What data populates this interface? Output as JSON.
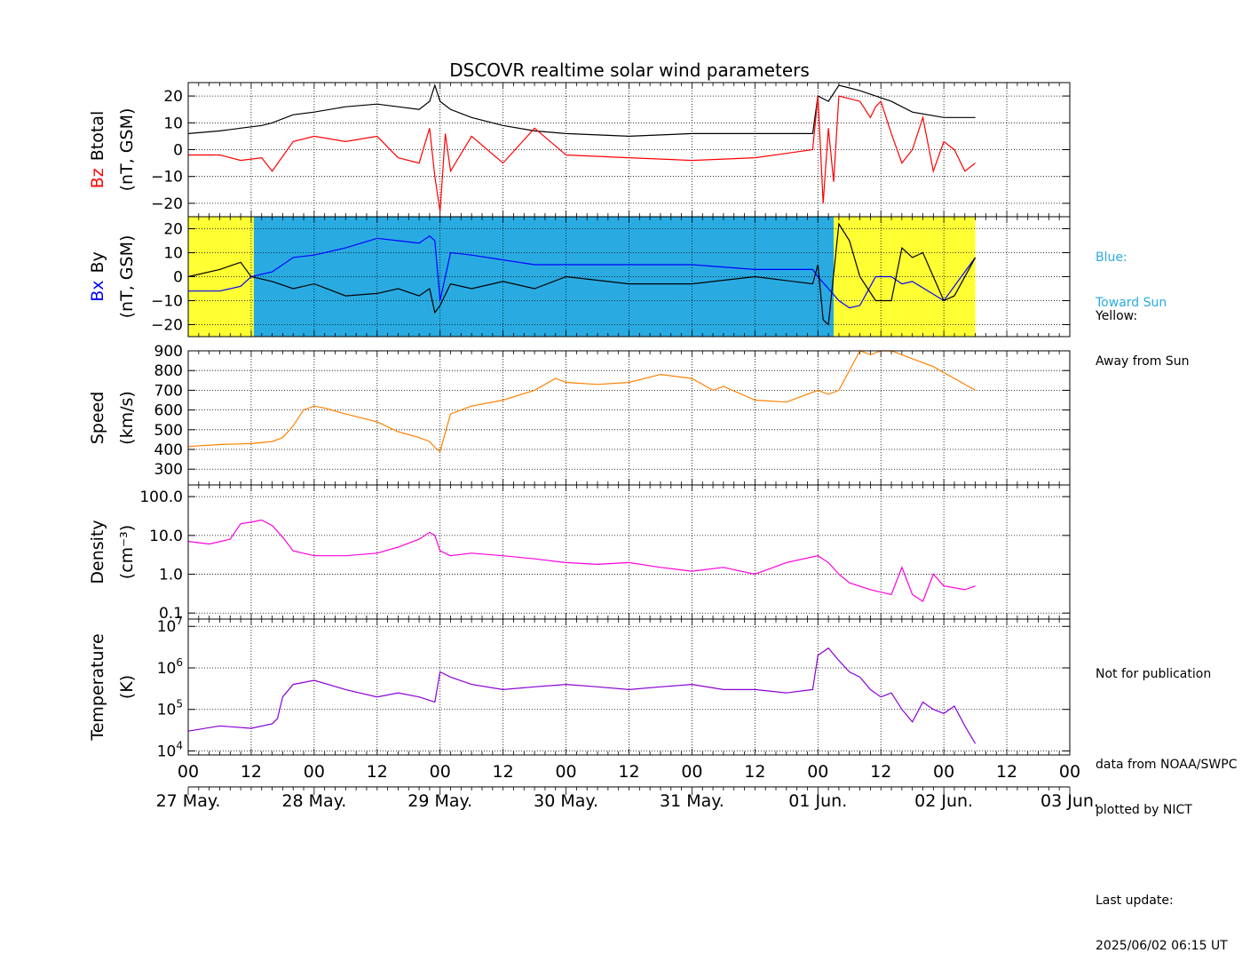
{
  "title": "DSCOVR realtime solar wind parameters",
  "colors": {
    "btotal": "#000000",
    "bz": "#ff0000",
    "bx": "#0000ff",
    "by": "#000000",
    "speed": "#ff8000",
    "density": "#ff00dd",
    "temperature": "#8a00d4",
    "toward_sun_bg": "#29abe2",
    "away_sun_bg": "#ffff33",
    "legend_blue_text": "#29abe2"
  },
  "legend": {
    "blue_label": "Blue:",
    "blue_text": "Toward Sun",
    "yellow_label": "Yellow:",
    "yellow_text": "Away from Sun"
  },
  "notes": {
    "line1": "Not for publication",
    "line2": "data from NOAA/SWPC",
    "line3": "plotted by NICT",
    "line4": "Last update:",
    "line5": "2025/06/02 06:15 UT"
  },
  "x_axis": {
    "hour_ticks": [
      "00",
      "12",
      "00",
      "12",
      "00",
      "12",
      "00",
      "12",
      "00",
      "12",
      "00",
      "12",
      "00",
      "12",
      "00"
    ],
    "date_labels": [
      "27 May.",
      "28 May.",
      "29 May.",
      "30 May.",
      "31 May.",
      "01 Jun.",
      "02 Jun.",
      "03 Jun."
    ]
  },
  "chart_data": {
    "type": "line",
    "time_unit": "hours since 27 May 00 UT",
    "xlim": [
      0,
      168
    ],
    "panels": [
      {
        "id": "magnetic-total",
        "ylabel_parts": [
          "Bz",
          "Btotal",
          "(nT, GSM)"
        ],
        "ylim": [
          -25,
          25
        ],
        "yticks": [
          "20",
          "10",
          "0",
          "−10",
          "−20"
        ],
        "ytick_values": [
          20,
          10,
          0,
          -10,
          -20
        ],
        "series": [
          {
            "name": "Btotal",
            "x": [
              0,
              6,
              10,
              14,
              16,
              20,
              24,
              30,
              36,
              40,
              44,
              46,
              47,
              48,
              50,
              54,
              60,
              66,
              72,
              84,
              96,
              108,
              119,
              120,
              122,
              124,
              126,
              128,
              131,
              134,
              136,
              138,
              144,
              150
            ],
            "y": [
              6,
              7,
              8,
              9,
              10,
              13,
              14,
              16,
              17,
              16,
              15,
              18,
              24,
              18,
              15,
              12,
              9,
              7,
              6,
              5,
              6,
              6,
              6,
              20,
              18,
              24,
              23,
              22,
              20,
              18,
              16,
              14,
              12,
              12
            ]
          },
          {
            "name": "Bz",
            "x": [
              0,
              6,
              10,
              14,
              16,
              20,
              24,
              30,
              36,
              40,
              44,
              46,
              47,
              48,
              49,
              50,
              54,
              60,
              66,
              72,
              84,
              96,
              108,
              119,
              120,
              121,
              122,
              123,
              124,
              126,
              128,
              130,
              131,
              132,
              134,
              136,
              138,
              140,
              142,
              144,
              146,
              148,
              150
            ],
            "y": [
              -2,
              -2,
              -4,
              -3,
              -8,
              3,
              5,
              3,
              5,
              -3,
              -5,
              8,
              -10,
              -23,
              6,
              -8,
              5,
              -5,
              8,
              -2,
              -3,
              -4,
              -3,
              0,
              20,
              -20,
              8,
              -12,
              20,
              19,
              18,
              12,
              16,
              18,
              6,
              -5,
              0,
              12,
              -8,
              3,
              0,
              -8,
              -5
            ]
          }
        ]
      },
      {
        "id": "magnetic-components",
        "ylabel_parts": [
          "Bx",
          "By",
          "(nT, GSM)"
        ],
        "ylim": [
          -25,
          25
        ],
        "yticks": [
          "20",
          "10",
          "0",
          "−10",
          "−20"
        ],
        "ytick_values": [
          20,
          10,
          0,
          -10,
          -20
        ],
        "sector": {
          "toward_sun_hours": [
            [
              12.5,
              123
            ]
          ],
          "away_from_sun_hours": [
            [
              0,
              12.5
            ],
            [
              123,
              150
            ]
          ]
        },
        "series": [
          {
            "name": "Bx",
            "x": [
              0,
              6,
              10,
              12,
              16,
              20,
              24,
              30,
              36,
              40,
              44,
              46,
              47,
              48,
              50,
              54,
              60,
              66,
              72,
              84,
              96,
              108,
              119,
              120,
              122,
              124,
              126,
              128,
              131,
              134,
              136,
              138,
              144,
              150
            ],
            "y": [
              -6,
              -6,
              -4,
              0,
              2,
              8,
              9,
              12,
              16,
              15,
              14,
              17,
              15,
              -10,
              10,
              9,
              7,
              5,
              5,
              5,
              5,
              3,
              3,
              0,
              -5,
              -10,
              -13,
              -12,
              0,
              0,
              -3,
              -2,
              -10,
              8
            ]
          },
          {
            "name": "By",
            "x": [
              0,
              6,
              10,
              12,
              16,
              20,
              24,
              30,
              36,
              40,
              44,
              46,
              47,
              48,
              50,
              54,
              60,
              66,
              72,
              84,
              96,
              108,
              119,
              120,
              121,
              122,
              124,
              126,
              128,
              131,
              134,
              136,
              138,
              140,
              142,
              144,
              146,
              150
            ],
            "y": [
              0,
              3,
              6,
              0,
              -2,
              -5,
              -3,
              -8,
              -7,
              -5,
              -8,
              -5,
              -15,
              -12,
              -3,
              -5,
              -2,
              -5,
              0,
              -3,
              -3,
              0,
              -3,
              5,
              -18,
              -20,
              22,
              15,
              0,
              -10,
              -10,
              12,
              8,
              10,
              0,
              -10,
              -8,
              8
            ]
          }
        ]
      },
      {
        "id": "speed",
        "ylabel_parts": [
          "Speed",
          "(km/s)"
        ],
        "ylim": [
          220,
          900
        ],
        "yticks": [
          "900",
          "800",
          "700",
          "600",
          "500",
          "400",
          "300"
        ],
        "ytick_values": [
          900,
          800,
          700,
          600,
          500,
          400,
          300
        ],
        "series": [
          {
            "name": "Speed",
            "x": [
              0,
              6,
              12,
              16,
              18,
              20,
              22,
              24,
              26,
              30,
              36,
              40,
              44,
              46,
              47,
              48,
              50,
              54,
              60,
              66,
              70,
              72,
              78,
              84,
              90,
              96,
              100,
              102,
              108,
              114,
              116,
              120,
              122,
              124,
              128,
              130,
              132,
              134,
              138,
              142,
              150
            ],
            "y": [
              415,
              425,
              430,
              440,
              460,
              520,
              600,
              620,
              610,
              580,
              540,
              490,
              460,
              440,
              410,
              390,
              580,
              620,
              650,
              700,
              760,
              740,
              730,
              740,
              780,
              760,
              700,
              720,
              650,
              640,
              660,
              700,
              680,
              700,
              900,
              880,
              900,
              900,
              860,
              820,
              700
            ]
          }
        ]
      },
      {
        "id": "density",
        "ylabel_parts": [
          "Density",
          "(cm⁻³)"
        ],
        "scale": "log",
        "ylim": [
          0.07,
          200
        ],
        "yticks": [
          "100.0",
          "10.0",
          "1.0",
          "0.1"
        ],
        "ytick_values": [
          100,
          10,
          1,
          0.1
        ],
        "series": [
          {
            "name": "Density",
            "x": [
              0,
              4,
              8,
              10,
              12,
              14,
              16,
              18,
              20,
              24,
              30,
              36,
              40,
              44,
              46,
              47,
              48,
              50,
              54,
              60,
              66,
              72,
              78,
              84,
              90,
              96,
              102,
              108,
              114,
              120,
              122,
              124,
              126,
              130,
              134,
              136,
              138,
              140,
              142,
              144,
              148,
              150
            ],
            "y": [
              7,
              6,
              8,
              20,
              22,
              25,
              18,
              9,
              4,
              3,
              3,
              3.5,
              5,
              8,
              12,
              10,
              4,
              3,
              3.5,
              3,
              2.5,
              2,
              1.8,
              2,
              1.5,
              1.2,
              1.5,
              1,
              2,
              3,
              2,
              1,
              0.6,
              0.4,
              0.3,
              1.5,
              0.3,
              0.2,
              1,
              0.5,
              0.4,
              0.5
            ]
          }
        ]
      },
      {
        "id": "temperature",
        "ylabel_parts": [
          "Temperature",
          "(K)"
        ],
        "scale": "log",
        "ylim": [
          8000,
          15000000
        ],
        "yticks": [
          "10^7",
          "10^6",
          "10^5",
          "10^4"
        ],
        "ytick_values": [
          10000000,
          1000000,
          100000,
          10000
        ],
        "series": [
          {
            "name": "Temperature",
            "x": [
              0,
              6,
              12,
              16,
              17,
              18,
              20,
              24,
              30,
              36,
              40,
              44,
              47,
              48,
              50,
              54,
              60,
              66,
              72,
              78,
              84,
              90,
              96,
              102,
              108,
              114,
              119,
              120,
              122,
              124,
              126,
              128,
              130,
              132,
              134,
              136,
              138,
              140,
              142,
              144,
              146,
              148,
              150
            ],
            "y": [
              30000,
              40000,
              35000,
              45000,
              60000,
              200000,
              400000,
              500000,
              300000,
              200000,
              250000,
              200000,
              150000,
              800000,
              600000,
              400000,
              300000,
              350000,
              400000,
              350000,
              300000,
              350000,
              400000,
              300000,
              300000,
              250000,
              300000,
              2000000,
              3000000,
              1500000,
              800000,
              600000,
              300000,
              200000,
              250000,
              100000,
              50000,
              150000,
              100000,
              80000,
              120000,
              40000,
              15000
            ]
          }
        ]
      }
    ]
  }
}
